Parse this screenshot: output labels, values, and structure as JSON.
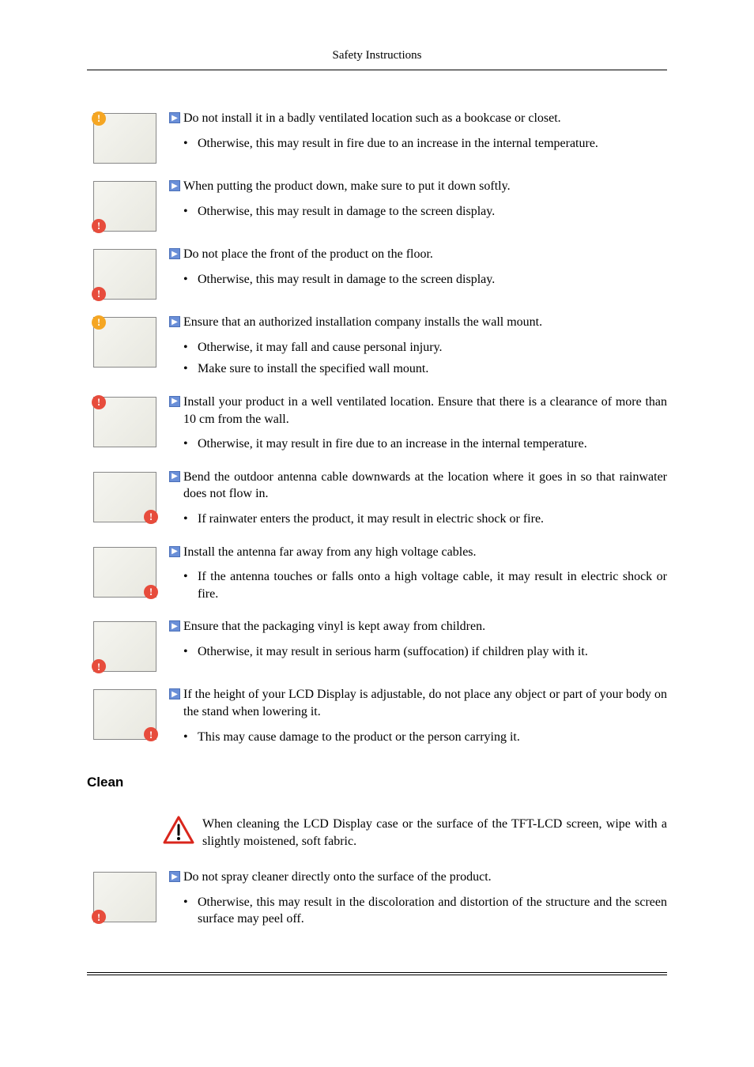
{
  "header": {
    "title": "Safety Instructions"
  },
  "items": [
    {
      "badge_color": "orange",
      "badge_pos": "tl",
      "lead": "Do not install it in a badly ventilated location such as a bookcase or closet.",
      "subs": [
        "Otherwise, this may result in fire due to an increase in the internal temperature."
      ]
    },
    {
      "badge_color": "red",
      "badge_pos": "bl",
      "lead": "When putting the product down, make sure to put it down softly.",
      "subs": [
        "Otherwise, this may result in damage to the screen display."
      ]
    },
    {
      "badge_color": "red",
      "badge_pos": "bl",
      "lead": "Do not place the front of the product on the floor.",
      "subs": [
        "Otherwise, this may result in damage to the screen display."
      ]
    },
    {
      "badge_color": "orange",
      "badge_pos": "tl",
      "lead": "Ensure that an authorized installation company installs the wall mount.",
      "subs": [
        "Otherwise, it may fall and cause personal injury.",
        "Make sure to install the specified wall mount."
      ]
    },
    {
      "badge_color": "red",
      "badge_pos": "tl",
      "lead": "Install your product in a well ventilated location. Ensure that there is a clearance of more than 10 cm from the wall.",
      "subs": [
        "Otherwise, it may result in fire due to an increase in the internal temperature."
      ]
    },
    {
      "badge_color": "red",
      "badge_pos": "br",
      "lead": "Bend the outdoor antenna cable downwards at the location where it goes in so that rainwater does not flow in.",
      "subs": [
        "If rainwater enters the product, it may result in electric shock or fire."
      ]
    },
    {
      "badge_color": "red",
      "badge_pos": "br",
      "lead": "Install the antenna far away from any high voltage cables.",
      "subs": [
        "If the antenna touches or falls onto a high voltage cable, it may result in electric shock or fire."
      ]
    },
    {
      "badge_color": "red",
      "badge_pos": "bl",
      "lead": "Ensure that the packaging vinyl is kept away from children.",
      "subs": [
        "Otherwise, it may result in serious harm (suffocation) if children play with it."
      ]
    },
    {
      "badge_color": "red",
      "badge_pos": "br",
      "lead": "If the height of your LCD Display is adjustable, do not place any object or part of your body on the stand when lowering it.",
      "subs": [
        "This may cause damage to the product or the person carrying it."
      ]
    }
  ],
  "section_clean": {
    "title": "Clean"
  },
  "clean_warn": {
    "text": "When cleaning the LCD Display case or the surface of the TFT-LCD screen, wipe with a slightly moistened, soft fabric."
  },
  "clean_item": {
    "badge_color": "red",
    "badge_pos": "bl",
    "lead": "Do not spray cleaner directly onto the surface of the product.",
    "subs": [
      "Otherwise, this may result in the discoloration and distortion of the structure and the screen surface may peel off."
    ]
  },
  "colors": {
    "arrow_bg": "#6a8fd8",
    "badge_orange": "#f5a623",
    "badge_red": "#e74c3c",
    "warn_red": "#d9261c"
  }
}
